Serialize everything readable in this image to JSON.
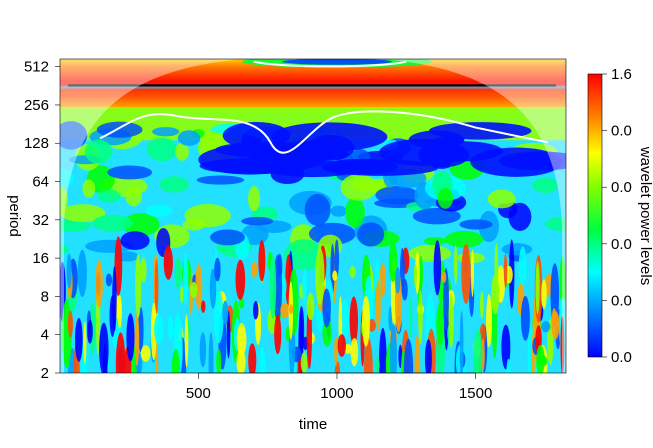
{
  "chart_data": {
    "type": "heatmap",
    "title": "",
    "xlabel": "time",
    "ylabel": "period",
    "xlim": [
      1,
      1826
    ],
    "ylim_log2": [
      1,
      9.2
    ],
    "x_ticks": [
      500,
      1000,
      1500
    ],
    "x_tick_labels": [
      "500",
      "1000",
      "1500"
    ],
    "y_ticks": [
      2,
      4,
      8,
      16,
      32,
      64,
      128,
      256,
      512
    ],
    "y_tick_labels": [
      "2",
      "4",
      "8",
      "16",
      "32",
      "64",
      "128",
      "256",
      "512"
    ],
    "y_scale": "log2",
    "grid": false,
    "legend": {
      "title": "wavelet power levels",
      "placement": "right",
      "labels": [
        "1.6",
        "0.0",
        "0.0",
        "0.0",
        "0.0",
        "0.0"
      ],
      "colors": [
        "#0000ff",
        "#00a0ff",
        "#00ffff",
        "#00ff60",
        "#00ff00",
        "#a0ff00",
        "#ffff00",
        "#ffa000",
        "#ff6000",
        "#ff0000"
      ]
    },
    "ridge_period": 365,
    "features": {
      "strong_band_period": [
        256,
        512
      ],
      "mid_band_period": [
        16,
        160
      ],
      "low_period_noise": [
        2,
        16
      ]
    }
  }
}
